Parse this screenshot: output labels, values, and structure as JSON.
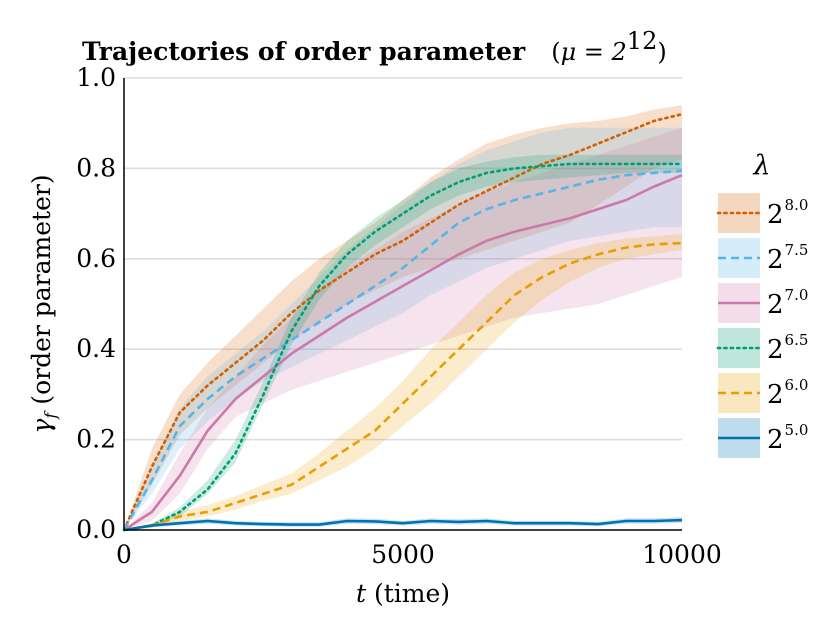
{
  "chart_data": {
    "type": "line",
    "title": {
      "main": "Trajectories of order parameter",
      "param": "μ = 2",
      "param_exp": "12"
    },
    "xlabel": {
      "symbol": "t",
      "text": "(time)"
    },
    "ylabel": {
      "symbol": "γ",
      "sub": "f",
      "text": "(order parameter)"
    },
    "xlim": [
      0,
      10000
    ],
    "ylim": [
      0,
      1.0
    ],
    "x_ticks": [
      0,
      5000,
      10000
    ],
    "x_tick_labels": [
      "0",
      "5000",
      "10000"
    ],
    "y_ticks": [
      0.0,
      0.2,
      0.4,
      0.6,
      0.8,
      1.0
    ],
    "y_tick_labels": [
      "0.0",
      "0.2",
      "0.4",
      "0.6",
      "0.8",
      "1.0"
    ],
    "grid": "horizontal",
    "legend": {
      "title": "λ",
      "position": "right"
    },
    "x": [
      0,
      500,
      1000,
      1500,
      2000,
      2500,
      3000,
      3500,
      4000,
      4500,
      5000,
      5500,
      6000,
      6500,
      7000,
      7500,
      8000,
      8500,
      9000,
      9500,
      10000
    ],
    "series": [
      {
        "name": "2",
        "exp": "8.0",
        "color": "#d55e00",
        "dash": "dotted",
        "values": [
          0.0,
          0.14,
          0.26,
          0.32,
          0.37,
          0.42,
          0.48,
          0.53,
          0.57,
          0.61,
          0.64,
          0.68,
          0.72,
          0.75,
          0.78,
          0.81,
          0.83,
          0.855,
          0.88,
          0.905,
          0.92
        ],
        "lower": [
          0.0,
          0.1,
          0.21,
          0.27,
          0.32,
          0.37,
          0.42,
          0.46,
          0.5,
          0.53,
          0.56,
          0.58,
          0.6,
          0.62,
          0.64,
          0.66,
          0.68,
          0.72,
          0.76,
          0.8,
          0.82
        ],
        "upper": [
          0.0,
          0.18,
          0.3,
          0.37,
          0.43,
          0.49,
          0.55,
          0.6,
          0.64,
          0.68,
          0.73,
          0.78,
          0.82,
          0.855,
          0.875,
          0.89,
          0.9,
          0.905,
          0.915,
          0.93,
          0.94
        ]
      },
      {
        "name": "2",
        "exp": "7.5",
        "color": "#56b4e9",
        "dash": "dashed",
        "values": [
          0.0,
          0.11,
          0.23,
          0.29,
          0.34,
          0.38,
          0.42,
          0.46,
          0.5,
          0.54,
          0.58,
          0.63,
          0.68,
          0.71,
          0.73,
          0.745,
          0.76,
          0.775,
          0.785,
          0.79,
          0.795
        ],
        "lower": [
          0.0,
          0.08,
          0.18,
          0.24,
          0.29,
          0.33,
          0.36,
          0.39,
          0.42,
          0.45,
          0.48,
          0.52,
          0.55,
          0.58,
          0.6,
          0.62,
          0.64,
          0.65,
          0.66,
          0.67,
          0.67
        ],
        "upper": [
          0.0,
          0.14,
          0.27,
          0.34,
          0.39,
          0.44,
          0.5,
          0.56,
          0.62,
          0.67,
          0.72,
          0.77,
          0.81,
          0.84,
          0.86,
          0.88,
          0.89,
          0.89,
          0.89,
          0.89,
          0.89
        ]
      },
      {
        "name": "2",
        "exp": "7.0",
        "color": "#cc79a7",
        "dash": "solid",
        "values": [
          0.0,
          0.04,
          0.12,
          0.22,
          0.29,
          0.34,
          0.39,
          0.43,
          0.47,
          0.505,
          0.54,
          0.575,
          0.61,
          0.64,
          0.66,
          0.675,
          0.69,
          0.71,
          0.73,
          0.76,
          0.785
        ],
        "lower": [
          0.0,
          0.02,
          0.08,
          0.18,
          0.25,
          0.28,
          0.31,
          0.33,
          0.35,
          0.37,
          0.39,
          0.41,
          0.43,
          0.45,
          0.47,
          0.48,
          0.49,
          0.5,
          0.52,
          0.54,
          0.56
        ],
        "upper": [
          0.0,
          0.06,
          0.17,
          0.27,
          0.34,
          0.41,
          0.47,
          0.53,
          0.58,
          0.62,
          0.66,
          0.69,
          0.72,
          0.75,
          0.77,
          0.79,
          0.81,
          0.83,
          0.85,
          0.87,
          0.89
        ]
      },
      {
        "name": "2",
        "exp": "6.5",
        "color": "#009e73",
        "dash": "dotted",
        "values": [
          0.0,
          0.01,
          0.04,
          0.09,
          0.17,
          0.3,
          0.44,
          0.54,
          0.61,
          0.66,
          0.7,
          0.74,
          0.77,
          0.79,
          0.8,
          0.805,
          0.81,
          0.81,
          0.81,
          0.81,
          0.81
        ],
        "lower": [
          0.0,
          0.005,
          0.03,
          0.08,
          0.15,
          0.28,
          0.41,
          0.51,
          0.58,
          0.63,
          0.67,
          0.71,
          0.74,
          0.76,
          0.77,
          0.775,
          0.78,
          0.785,
          0.79,
          0.79,
          0.79
        ],
        "upper": [
          0.0,
          0.015,
          0.05,
          0.11,
          0.2,
          0.33,
          0.47,
          0.57,
          0.64,
          0.69,
          0.73,
          0.77,
          0.8,
          0.815,
          0.825,
          0.83,
          0.83,
          0.83,
          0.83,
          0.83,
          0.83
        ]
      },
      {
        "name": "2",
        "exp": "6.0",
        "color": "#e69f00",
        "dash": "dashed",
        "values": [
          0.0,
          0.01,
          0.03,
          0.04,
          0.06,
          0.08,
          0.1,
          0.14,
          0.18,
          0.22,
          0.28,
          0.34,
          0.4,
          0.46,
          0.52,
          0.56,
          0.59,
          0.61,
          0.625,
          0.632,
          0.635
        ],
        "lower": [
          0.0,
          0.005,
          0.02,
          0.03,
          0.045,
          0.065,
          0.08,
          0.11,
          0.14,
          0.18,
          0.23,
          0.28,
          0.34,
          0.4,
          0.46,
          0.51,
          0.55,
          0.58,
          0.6,
          0.61,
          0.62
        ],
        "upper": [
          0.0,
          0.015,
          0.04,
          0.055,
          0.075,
          0.1,
          0.125,
          0.17,
          0.22,
          0.27,
          0.33,
          0.4,
          0.46,
          0.52,
          0.57,
          0.6,
          0.62,
          0.635,
          0.645,
          0.65,
          0.655
        ]
      },
      {
        "name": "2",
        "exp": "5.0",
        "color": "#0072b2",
        "dash": "solid",
        "values": [
          0.0,
          0.01,
          0.015,
          0.02,
          0.015,
          0.013,
          0.012,
          0.012,
          0.02,
          0.019,
          0.015,
          0.02,
          0.018,
          0.02,
          0.015,
          0.015,
          0.015,
          0.013,
          0.02,
          0.02,
          0.022
        ],
        "lower": [
          0.0,
          0.006,
          0.01,
          0.014,
          0.01,
          0.008,
          0.007,
          0.007,
          0.014,
          0.013,
          0.01,
          0.014,
          0.012,
          0.014,
          0.01,
          0.01,
          0.01,
          0.008,
          0.014,
          0.014,
          0.016
        ],
        "upper": [
          0.0,
          0.014,
          0.02,
          0.026,
          0.02,
          0.018,
          0.017,
          0.017,
          0.026,
          0.025,
          0.02,
          0.026,
          0.024,
          0.026,
          0.02,
          0.02,
          0.02,
          0.018,
          0.026,
          0.026,
          0.028
        ]
      }
    ]
  }
}
